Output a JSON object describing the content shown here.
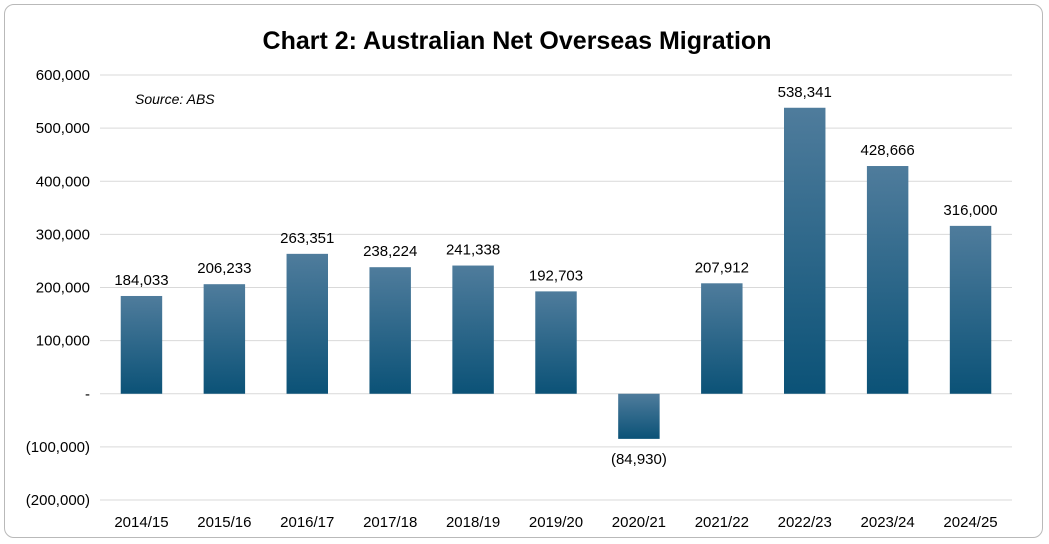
{
  "chart_data": {
    "type": "bar",
    "title": "Chart 2: Australian Net Overseas Migration",
    "source_note": "Source: ABS",
    "xlabel": "",
    "ylabel": "",
    "ylim": [
      -200000,
      600000
    ],
    "grid": true,
    "categories": [
      "2014/15",
      "2015/16",
      "2016/17",
      "2017/18",
      "2018/19",
      "2019/20",
      "2020/21",
      "2021/22",
      "2022/23",
      "2023/24",
      "2024/25"
    ],
    "values": [
      184033,
      206233,
      263351,
      238224,
      241338,
      192703,
      -84930,
      207912,
      538341,
      428666,
      316000
    ],
    "data_labels": [
      "184,033",
      "206,233",
      "263,351",
      "238,224",
      "241,338",
      "192,703",
      "(84,930)",
      "207,912",
      "538,341",
      "428,666",
      "316,000"
    ],
    "y_ticks": [
      600000,
      500000,
      400000,
      300000,
      200000,
      100000,
      0,
      -100000,
      -200000
    ],
    "y_tick_labels": [
      "600,000",
      "500,000",
      "400,000",
      "300,000",
      "200,000",
      "100,000",
      "-",
      "(100,000)",
      "(200,000)"
    ],
    "colors": {
      "bar_top": "#4f7c9c",
      "bar_bottom": "#0b5277",
      "grid": "#d9d9d9"
    }
  }
}
